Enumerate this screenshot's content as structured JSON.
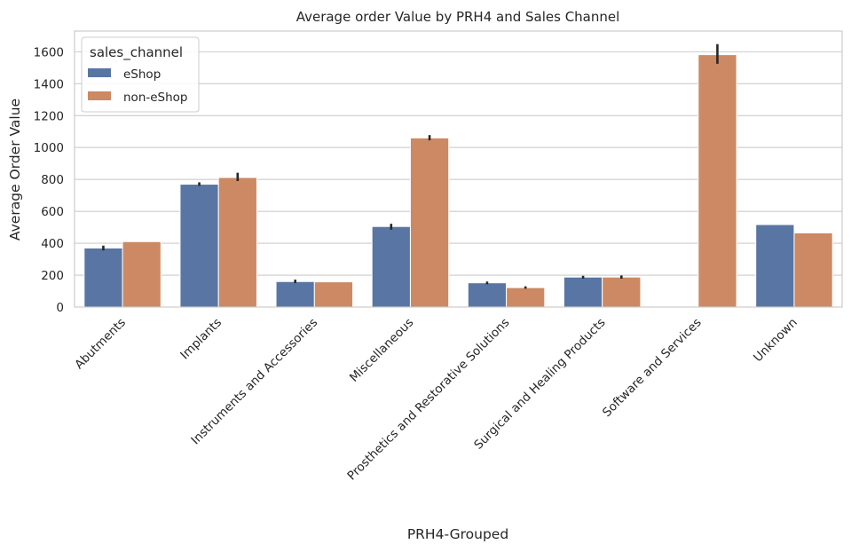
{
  "chart_data": {
    "type": "bar",
    "title": "Average order Value by PRH4 and Sales Channel",
    "xlabel": "PRH4-Grouped",
    "ylabel": "Average Order Value",
    "categories": [
      "Abutments",
      "Implants",
      "Instruments and Accessories",
      "Miscellaneous",
      "Prosthetics and Restorative Solutions",
      "Surgical and Healing Products",
      "Software and Services",
      "Unknown"
    ],
    "series": [
      {
        "name": "eShop",
        "color": "#5875a4",
        "values": [
          370,
          770,
          160,
          505,
          152,
          188,
          null,
          517
        ],
        "error_low": [
          355,
          760,
          150,
          485,
          143,
          178,
          null,
          null
        ],
        "error_high": [
          385,
          782,
          172,
          522,
          160,
          196,
          null,
          null
        ]
      },
      {
        "name": "non-eShop",
        "color": "#cc8963",
        "values": [
          410,
          812,
          158,
          1060,
          122,
          188,
          1582,
          465
        ],
        "error_low": [
          null,
          790,
          null,
          1045,
          115,
          178,
          1525,
          null
        ],
        "error_high": [
          null,
          842,
          null,
          1078,
          130,
          198,
          1648,
          null
        ]
      }
    ],
    "ylim": [
      0,
      1730
    ],
    "yticks": [
      0,
      200,
      400,
      600,
      800,
      1000,
      1200,
      1400,
      1600
    ],
    "grid": true,
    "legend": {
      "title": "sales_channel",
      "position": "top-left"
    }
  }
}
